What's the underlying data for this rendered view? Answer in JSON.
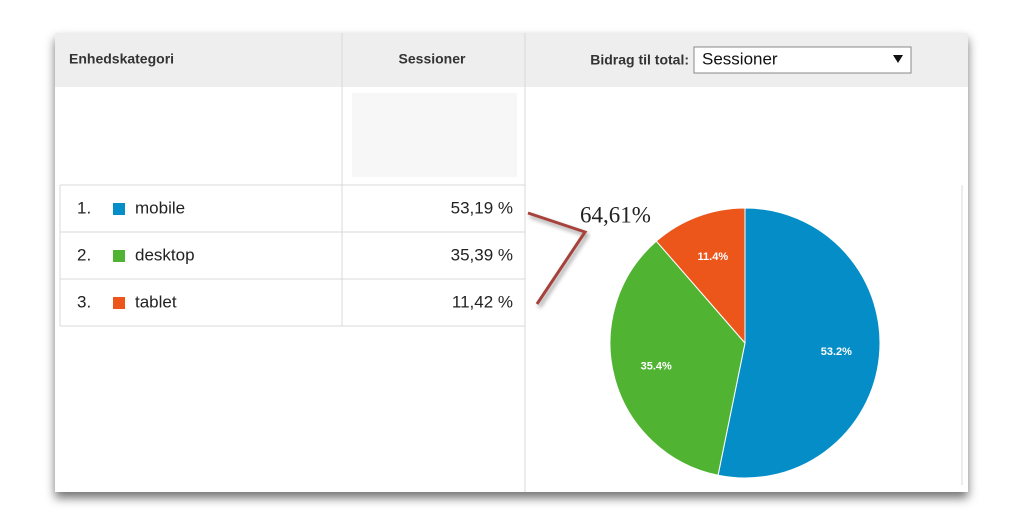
{
  "table": {
    "headers": [
      "Enhedskategori",
      "Sessioner",
      "Bidrag til total:"
    ],
    "dropdown": "Sessioner",
    "rows": [
      {
        "index": "1.",
        "name": "mobile",
        "value": "53,19 %"
      },
      {
        "index": "2.",
        "name": "desktop",
        "value": "35,39 %"
      },
      {
        "index": "3.",
        "name": "tablet",
        "value": "11,42 %"
      }
    ]
  },
  "chart_data": {
    "type": "pie",
    "values": [
      53.2,
      35.4,
      11.4
    ],
    "value_labels": [
      "53.2%",
      "35.4%",
      "11.4%"
    ],
    "colors": [
      "#058dc7",
      "#50b432",
      "#ed561b"
    ],
    "annotation": "64,61%"
  }
}
